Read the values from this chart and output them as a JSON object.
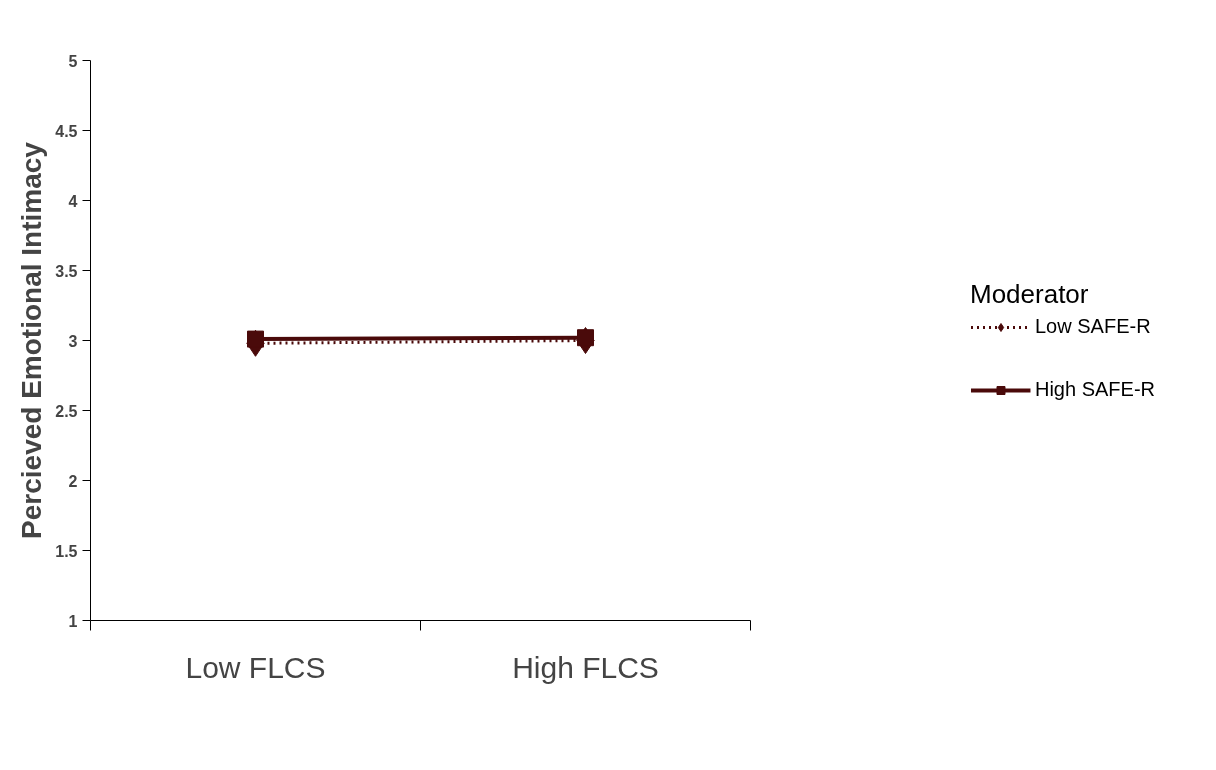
{
  "chart_data": {
    "type": "line",
    "ylabel": "Percieved Emotional Intimacy",
    "legend_title": "Moderator",
    "categories": [
      "Low FLCS",
      "High FLCS"
    ],
    "series": [
      {
        "name": "Low SAFE-R",
        "color": "#4a0a0a",
        "values": [
          2.98,
          3.0
        ],
        "marker": "diamond",
        "line_style": "dotted"
      },
      {
        "name": "High SAFE-R",
        "color": "#4a0a0a",
        "values": [
          3.01,
          3.02
        ],
        "marker": "square",
        "line_style": "solid"
      }
    ],
    "ylim": [
      1,
      5
    ],
    "yticks": [
      1,
      1.5,
      2,
      2.5,
      3,
      3.5,
      4,
      4.5,
      5
    ],
    "grid": false,
    "legend": "right"
  }
}
